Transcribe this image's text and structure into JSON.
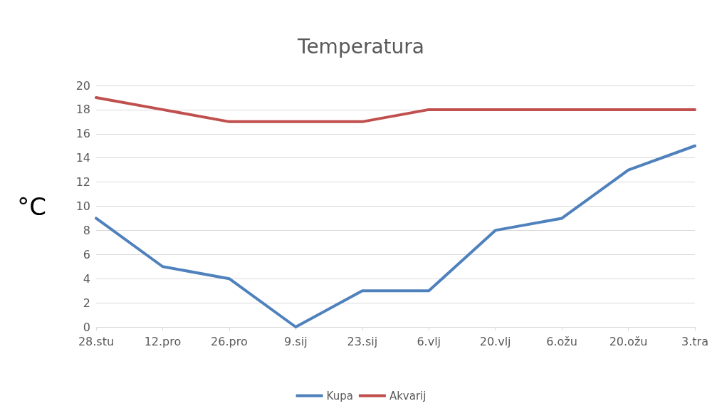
{
  "chart_data": {
    "type": "line",
    "title": "Temperatura",
    "ylabel": "°C",
    "categories": [
      "28.stu",
      "12.pro",
      "26.pro",
      "9.sij",
      "23.sij",
      "6.vlj",
      "20.vlj",
      "6.ožu",
      "20.ožu",
      "3.tra"
    ],
    "series": [
      {
        "name": "Kupa",
        "color": "#4f81bd",
        "values": [
          9,
          5,
          4,
          0,
          3,
          3,
          8,
          9,
          13,
          15
        ]
      },
      {
        "name": "Akvarij",
        "color": "#c0504d",
        "values": [
          19,
          18,
          17,
          17,
          17,
          18,
          18,
          18,
          18,
          18
        ]
      }
    ],
    "ylim": [
      0,
      20
    ],
    "yticks": [
      0,
      2,
      4,
      6,
      8,
      10,
      12,
      14,
      16,
      18,
      20
    ],
    "grid": "y",
    "legend": "bottom",
    "marker": "none",
    "line_style": "solid"
  }
}
